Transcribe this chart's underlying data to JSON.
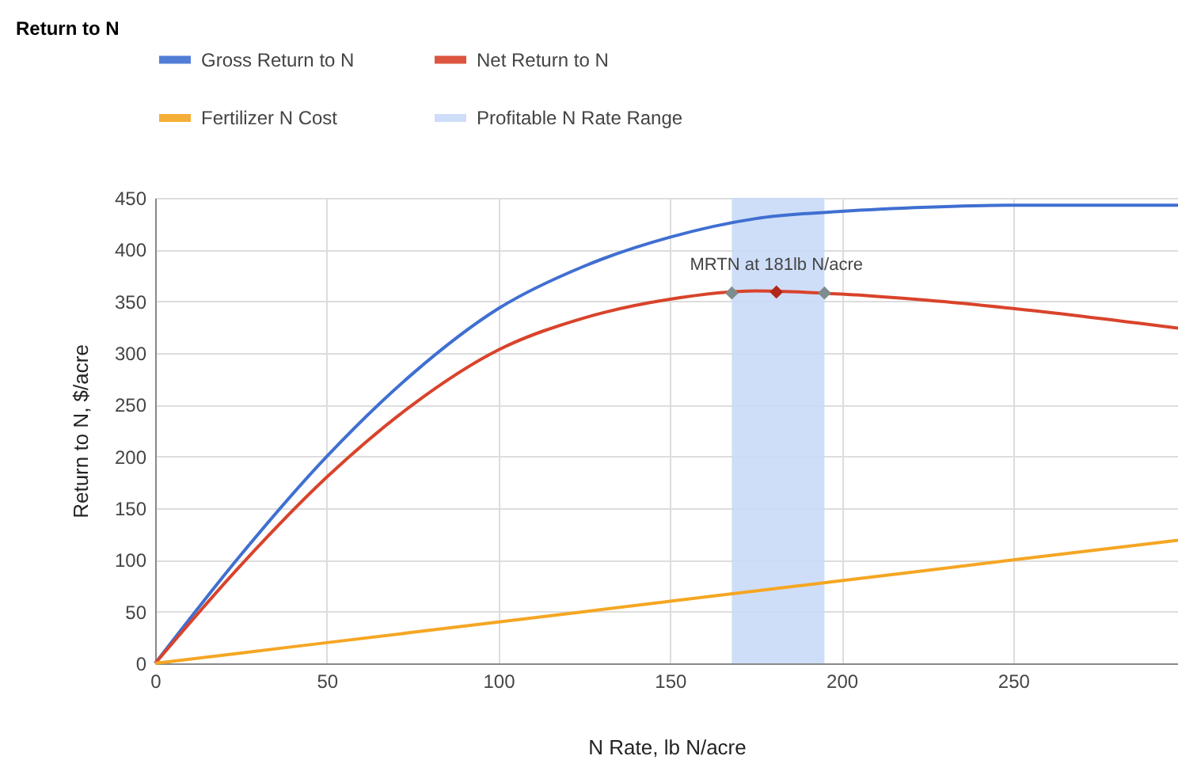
{
  "chart_data": {
    "type": "line",
    "title": "Return to N",
    "xlabel": "N Rate, lb N/acre",
    "ylabel": "Return to N, $/acre",
    "x": [
      0,
      25,
      50,
      75,
      100,
      125,
      150,
      175,
      200,
      225,
      250,
      298
    ],
    "series": [
      {
        "name": "Gross Return to N",
        "color": "#3f6fd1",
        "values": [
          0,
          105,
          200,
          280,
          343,
          384,
          412,
          430,
          437,
          441,
          443,
          443
        ]
      },
      {
        "name": "Net Return to N",
        "color": "#d9432b",
        "values": [
          0,
          95,
          180,
          250,
          303,
          334,
          352,
          360,
          357,
          351,
          343,
          324
        ]
      },
      {
        "name": "Fertilizer N Cost",
        "color": "#f5a623",
        "values": [
          0,
          10,
          20,
          30,
          40,
          50,
          60,
          70,
          80,
          90,
          100,
          119
        ]
      },
      {
        "type": "scatter",
        "marker": "diamond",
        "x": [
          168,
          181,
          195
        ],
        "values": [
          358,
          359,
          358
        ],
        "colors": [
          "#7f8c8d",
          "#b0281a",
          "#7f8c8d"
        ]
      }
    ],
    "bands": [
      {
        "axis": "x",
        "from": 168,
        "to": 195,
        "label": "Profitable N Rate Range",
        "color": "#c9daf8"
      }
    ],
    "annotations": [
      {
        "text": "MRTN at 181lb N/acre",
        "x": 181,
        "y": 359
      }
    ],
    "xlim": [
      0,
      298
    ],
    "xticks": [
      0,
      50,
      100,
      150,
      200,
      250
    ],
    "ylim": [
      0,
      450
    ],
    "yticks": [
      0,
      50,
      100,
      150,
      200,
      250,
      300,
      350,
      400,
      450
    ],
    "grid": true,
    "legend": "top left",
    "line_style": "solid"
  }
}
